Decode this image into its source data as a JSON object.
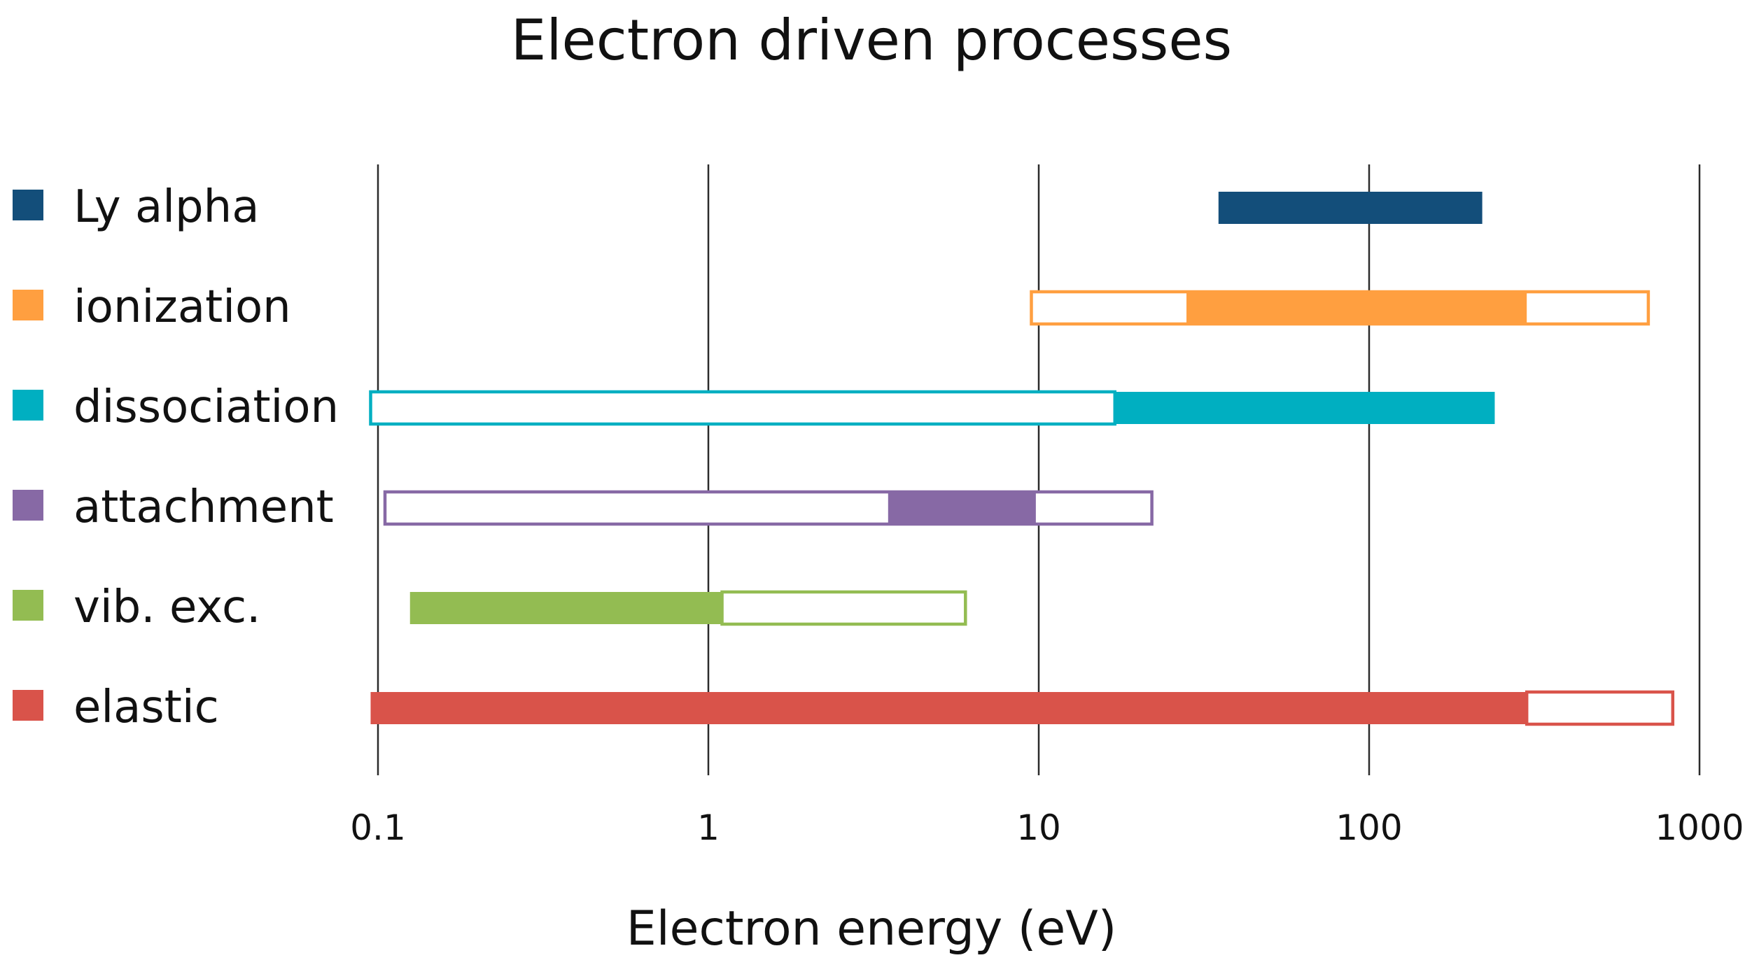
{
  "chart_data": {
    "type": "bar",
    "subtype": "horizontal-range-log",
    "title": "Electron driven processes",
    "xlabel": "Electron energy (eV)",
    "ylabel": "",
    "xscale": "log",
    "xlim": [
      0.1,
      1000
    ],
    "xticks": [
      0.1,
      1,
      10,
      100,
      1000
    ],
    "xtick_labels": [
      "0.1",
      "1",
      "10",
      "100",
      "1000"
    ],
    "grid": "vertical lines at ticks",
    "legend_position": "left",
    "series": [
      {
        "name": "Ly alpha",
        "color": "#134e7a",
        "outline_range": null,
        "filled_range": [
          35,
          220
        ]
      },
      {
        "name": "ionization",
        "color": "#ff9f40",
        "outline_range": [
          9.5,
          700
        ],
        "filled_range": [
          28,
          300
        ]
      },
      {
        "name": "dissociation",
        "color": "#00afc1",
        "outline_range": [
          0.095,
          17
        ],
        "filled_range": [
          17,
          240
        ]
      },
      {
        "name": "attachment",
        "color": "#8769a5",
        "outline_range": [
          0.105,
          22
        ],
        "filled_range": [
          3.5,
          9.8
        ]
      },
      {
        "name": "vib. exc.",
        "color": "#93bc52",
        "outline_range": [
          1.1,
          6
        ],
        "filled_range": [
          0.125,
          1.1
        ]
      },
      {
        "name": "elastic",
        "color": "#d9534a",
        "outline_range": [
          300,
          830
        ],
        "filled_range": [
          0.095,
          300
        ]
      }
    ]
  }
}
